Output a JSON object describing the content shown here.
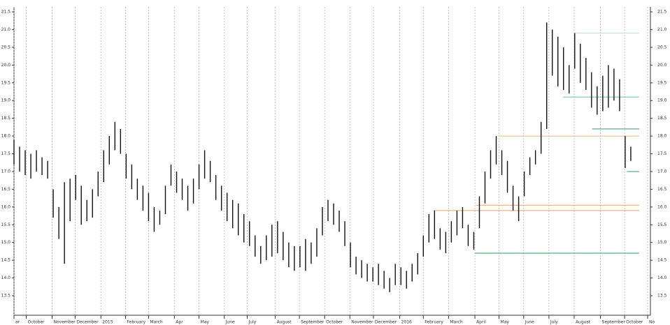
{
  "chart_data": {
    "type": "ohlc",
    "x": [
      0,
      1,
      2,
      3,
      4,
      5,
      6,
      7,
      8,
      9,
      10,
      11,
      12,
      13,
      14,
      15,
      16,
      17,
      18,
      19,
      20,
      21,
      22,
      23,
      24,
      25,
      26,
      27,
      28,
      29,
      30,
      31,
      32,
      33,
      34,
      35,
      36,
      37,
      38,
      39,
      40,
      41,
      42,
      43,
      44,
      45,
      46,
      47,
      48,
      49,
      50,
      51,
      52,
      53,
      54,
      55,
      56,
      57,
      58,
      59,
      60,
      61,
      62,
      63,
      64,
      65,
      66,
      67,
      68,
      69,
      70,
      71,
      72,
      73,
      74,
      75,
      76,
      77,
      78,
      79,
      80,
      81,
      82,
      83,
      84,
      85,
      86,
      87,
      88,
      89,
      90,
      91,
      92,
      93,
      94,
      95,
      96,
      97,
      98,
      99,
      100,
      101,
      102,
      103,
      104,
      105,
      106,
      107,
      108,
      109,
      110
    ],
    "high": [
      17.9,
      17.7,
      17.6,
      17.5,
      17.6,
      17.4,
      17.3,
      16.5,
      16.0,
      16.7,
      16.8,
      16.9,
      16.6,
      16.2,
      16.5,
      17.0,
      17.6,
      18.0,
      18.4,
      18.2,
      17.5,
      17.2,
      16.8,
      16.6,
      16.4,
      16.0,
      15.9,
      16.6,
      17.2,
      17.0,
      16.8,
      16.6,
      16.8,
      17.2,
      17.6,
      17.3,
      16.9,
      16.6,
      16.4,
      16.2,
      16.1,
      15.8,
      15.6,
      15.2,
      14.9,
      15.2,
      15.5,
      15.6,
      15.3,
      15.0,
      14.9,
      14.9,
      15.1,
      15.0,
      15.4,
      16.0,
      16.2,
      16.1,
      15.9,
      15.6,
      15.0,
      14.6,
      14.5,
      14.4,
      14.3,
      14.4,
      14.2,
      14.0,
      14.4,
      14.3,
      14.2,
      14.4,
      14.7,
      15.2,
      15.8,
      15.9,
      15.4,
      15.3,
      15.6,
      15.9,
      16.0,
      15.5,
      15.3,
      16.3,
      17.0,
      17.6,
      18.0,
      17.6,
      17.3,
      16.6,
      16.3,
      17.0,
      17.4,
      17.6,
      18.4,
      21.2,
      21.0,
      20.8,
      20.5,
      20.0,
      20.9,
      20.6,
      20.2,
      19.8,
      19.4,
      19.7,
      20.0,
      19.9,
      19.6,
      18.0,
      17.7
    ],
    "low": [
      17.2,
      17.0,
      16.9,
      16.8,
      17.0,
      16.9,
      16.8,
      15.7,
      15.1,
      14.4,
      15.6,
      16.2,
      15.5,
      15.6,
      15.7,
      16.3,
      16.7,
      17.2,
      17.6,
      17.5,
      16.8,
      16.5,
      16.2,
      15.9,
      15.6,
      15.3,
      15.5,
      15.8,
      16.6,
      16.4,
      16.2,
      15.9,
      16.1,
      16.5,
      16.8,
      16.7,
      16.2,
      15.9,
      15.6,
      15.4,
      15.2,
      15.0,
      14.9,
      14.6,
      14.4,
      14.5,
      14.6,
      14.7,
      14.5,
      14.3,
      14.2,
      14.3,
      14.2,
      14.4,
      14.6,
      15.2,
      15.6,
      15.5,
      15.3,
      14.9,
      14.3,
      14.1,
      14.0,
      13.9,
      13.9,
      13.8,
      13.7,
      13.6,
      13.8,
      13.8,
      13.7,
      13.9,
      14.1,
      14.6,
      15.0,
      15.1,
      14.8,
      14.7,
      15.0,
      15.2,
      15.4,
      14.9,
      14.8,
      15.4,
      16.1,
      16.8,
      17.2,
      16.9,
      16.4,
      15.9,
      15.6,
      16.3,
      16.9,
      17.2,
      17.5,
      18.2,
      19.7,
      19.4,
      19.3,
      19.2,
      19.9,
      19.5,
      19.3,
      18.8,
      18.6,
      18.7,
      18.8,
      19.0,
      18.7,
      17.1,
      17.3
    ],
    "xlim": [
      0,
      113.5
    ],
    "xticks": [
      {
        "value": 0,
        "label": "ar"
      },
      {
        "value": 2.2,
        "label": "October"
      },
      {
        "value": 6.8,
        "label": "November"
      },
      {
        "value": 10.9,
        "label": "December"
      },
      {
        "value": 15.5,
        "label": "2015"
      },
      {
        "value": 19.9,
        "label": "February"
      },
      {
        "value": 24.0,
        "label": "March"
      },
      {
        "value": 28.6,
        "label": "Apr"
      },
      {
        "value": 33.0,
        "label": "May"
      },
      {
        "value": 37.5,
        "label": "June"
      },
      {
        "value": 41.6,
        "label": "July"
      },
      {
        "value": 46.6,
        "label": "August"
      },
      {
        "value": 50.9,
        "label": "September"
      },
      {
        "value": 55.4,
        "label": "October"
      },
      {
        "value": 59.9,
        "label": "November"
      },
      {
        "value": 64.1,
        "label": "December"
      },
      {
        "value": 68.8,
        "label": "2016"
      },
      {
        "value": 73.0,
        "label": "February"
      },
      {
        "value": 77.5,
        "label": "March"
      },
      {
        "value": 82.2,
        "label": "April"
      },
      {
        "value": 86.5,
        "label": "May"
      },
      {
        "value": 90.9,
        "label": "June"
      },
      {
        "value": 95.4,
        "label": "July"
      },
      {
        "value": 99.9,
        "label": "August"
      },
      {
        "value": 104.6,
        "label": "September"
      },
      {
        "value": 108.9,
        "label": "October"
      },
      {
        "value": 113.0,
        "label": "No"
      }
    ],
    "ylim": [
      13.5,
      21.5
    ],
    "yticks": [
      13.5,
      {
        "value": 14,
        "label": "14.0"
      },
      14.5,
      {
        "value": 15,
        "label": "15.0"
      },
      15.5,
      {
        "value": 16,
        "label": "16.0"
      },
      16.5,
      {
        "value": 17,
        "label": "17.0"
      },
      17.5,
      {
        "value": 18,
        "label": "18.0"
      },
      18.5,
      {
        "value": 19,
        "label": "19.0"
      },
      19.5,
      {
        "value": 20,
        "label": "20.0"
      },
      20.5,
      {
        "value": 21,
        "label": "21.0"
      },
      21.5
    ],
    "bar_color": "#111111",
    "grid": true,
    "levels": [
      {
        "value": 18.0,
        "x_start": 86.6,
        "x_end": 111.5,
        "color": "#f0b080"
      },
      {
        "value": 18.2,
        "x_start": 103.1,
        "x_end": 111.5,
        "color": "#2e9e6a"
      },
      {
        "value": 19.1,
        "x_start": 97.9,
        "x_end": 111.5,
        "color": "#6cc49a"
      },
      {
        "value": 20.9,
        "x_start": 100.0,
        "x_end": 111.5,
        "color": "#c8e0d0"
      },
      {
        "value": 17.0,
        "x_start": 109.3,
        "x_end": 111.5,
        "color": "#2e9e6a"
      },
      {
        "value": 16.05,
        "x_start": 82.4,
        "x_end": 111.5,
        "color": "#f0a060"
      },
      {
        "value": 15.9,
        "x_start": 74.8,
        "x_end": 111.5,
        "color": "#f0a060"
      },
      {
        "value": 14.7,
        "x_start": 82.2,
        "x_end": 111.5,
        "color": "#2e9e6a"
      }
    ]
  }
}
